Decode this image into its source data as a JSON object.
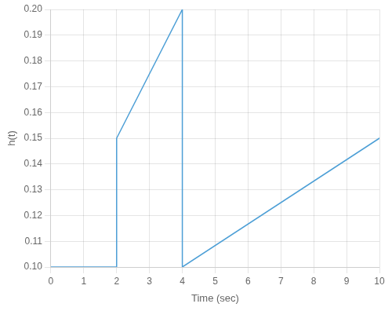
{
  "chart_data": {
    "type": "line",
    "x": [
      0,
      2,
      2,
      4,
      4,
      10
    ],
    "values": [
      0.1,
      0.1,
      0.15,
      0.2,
      0.1,
      0.15
    ],
    "color": "#4d9fd6",
    "xlabel": "Time (sec)",
    "ylabel": "h(t)",
    "xlim": [
      0,
      10
    ],
    "ylim": [
      0.1,
      0.2
    ],
    "xticks": [
      0,
      1,
      2,
      3,
      4,
      5,
      6,
      7,
      8,
      9,
      10
    ],
    "yticks": [
      {
        "value": 0.1,
        "label": "0.10"
      },
      0.11,
      0.12,
      0.13,
      0.14,
      0.15,
      0.16,
      0.17,
      0.18,
      0.19,
      {
        "value": 0.2,
        "label": "0.20"
      }
    ],
    "grid": true
  }
}
